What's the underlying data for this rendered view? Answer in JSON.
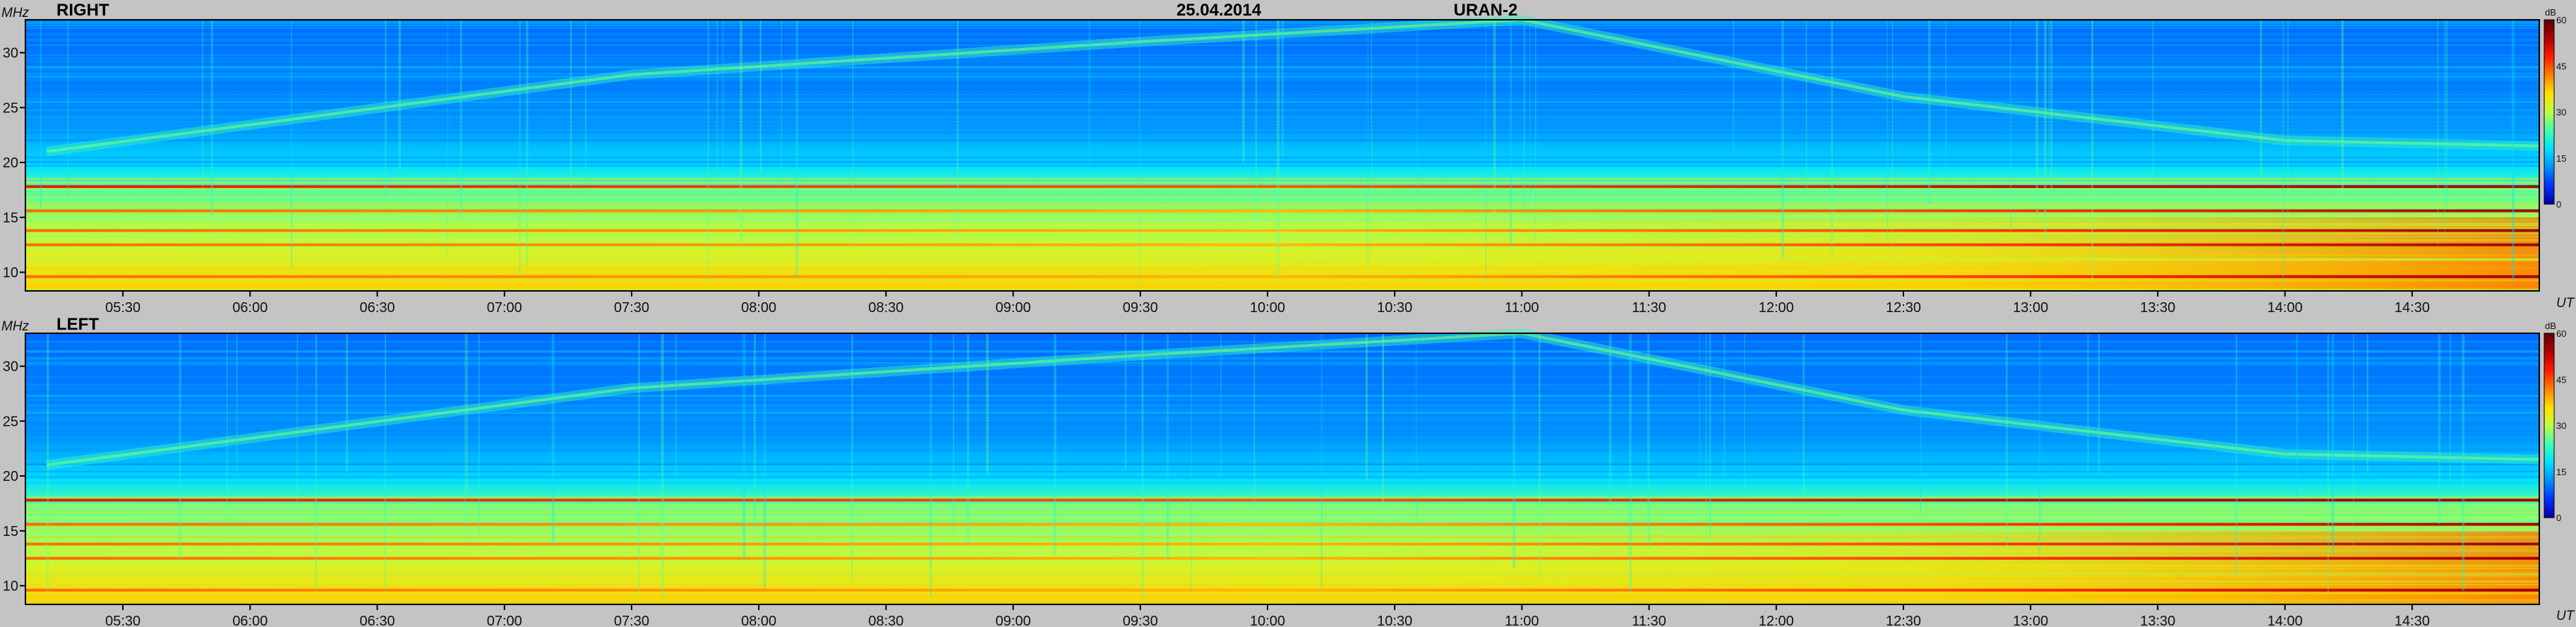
{
  "header": {
    "date": "25.04.2014",
    "station": "URAN-2"
  },
  "chart_data": [
    {
      "type": "heatmap",
      "panel_label": "RIGHT",
      "ylabel": "MHz",
      "xlabel": "UT",
      "colorbar_unit": "dB",
      "colorbar_ticks": [
        0,
        15,
        30,
        45,
        60
      ],
      "colorbar_range": [
        0,
        60
      ],
      "x_ticks": [
        "05:30",
        "06:00",
        "06:30",
        "07:00",
        "07:30",
        "08:00",
        "08:30",
        "09:00",
        "09:30",
        "10:00",
        "10:30",
        "11:00",
        "11:30",
        "12:00",
        "12:30",
        "13:00",
        "13:30",
        "14:00",
        "14:30"
      ],
      "x_range": [
        "05:07",
        "15:00"
      ],
      "y_ticks": [
        10,
        15,
        20,
        25,
        30
      ],
      "y_range": [
        8.3,
        33
      ],
      "intensity_features": {
        "hot_bands_mhz": [
          9.6,
          12.5,
          13.8,
          15.6,
          17.8
        ],
        "drifting_band_mhz": [
          [
            5.2,
            21.0
          ],
          [
            7.5,
            28.0
          ],
          [
            9.5,
            31.0
          ],
          [
            11.0,
            33.0
          ],
          [
            12.5,
            26.0
          ],
          [
            14.0,
            22.0
          ],
          [
            15.0,
            21.5
          ]
        ],
        "hot_region_start": "13:30"
      }
    },
    {
      "type": "heatmap",
      "panel_label": "LEFT",
      "ylabel": "MHz",
      "xlabel": "UT",
      "colorbar_unit": "dB",
      "colorbar_ticks": [
        0,
        15,
        30,
        45,
        60
      ],
      "colorbar_range": [
        0,
        60
      ],
      "x_ticks": [
        "05:30",
        "06:00",
        "06:30",
        "07:00",
        "07:30",
        "08:00",
        "08:30",
        "09:00",
        "09:30",
        "10:00",
        "10:30",
        "11:00",
        "11:30",
        "12:00",
        "12:30",
        "13:00",
        "13:30",
        "14:00",
        "14:30"
      ],
      "x_range": [
        "05:07",
        "15:00"
      ],
      "y_ticks": [
        10,
        15,
        20,
        25,
        30
      ],
      "y_range": [
        8.3,
        33
      ],
      "intensity_features": {
        "hot_bands_mhz": [
          9.6,
          12.5,
          13.8,
          15.6,
          17.8
        ],
        "drifting_band_mhz": [
          [
            5.2,
            21.0
          ],
          [
            7.5,
            28.0
          ],
          [
            9.5,
            31.0
          ],
          [
            11.0,
            33.0
          ],
          [
            12.5,
            26.0
          ],
          [
            14.0,
            22.0
          ],
          [
            15.0,
            21.5
          ]
        ],
        "hot_region_start": "13:30"
      }
    }
  ],
  "colors": {
    "background": "#c4c4c4",
    "colormap": [
      "#0000a0",
      "#0030ff",
      "#0090ff",
      "#00e0ff",
      "#40ffb0",
      "#c0ff40",
      "#ffe000",
      "#ff8000",
      "#ff1a00",
      "#b00000",
      "#600000"
    ]
  }
}
